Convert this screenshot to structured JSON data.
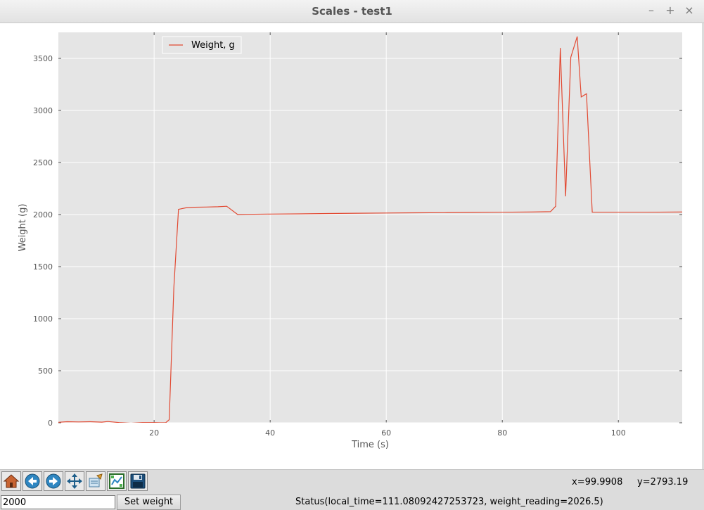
{
  "window": {
    "title": "Scales - test1",
    "controls": {
      "minimize": "–",
      "maximize": "+",
      "close": "×"
    }
  },
  "chart_data": {
    "type": "line",
    "xlabel": "Time (s)",
    "ylabel": "Weight (g)",
    "xlim": [
      3.5,
      111
    ],
    "ylim": [
      0,
      3750
    ],
    "xticks": [
      20,
      40,
      60,
      80,
      100
    ],
    "yticks": [
      0,
      500,
      1000,
      1500,
      2000,
      2500,
      3000,
      3500
    ],
    "grid": true,
    "legend_position": "top-left",
    "background_color": "#e5e5e5",
    "series": [
      {
        "name": "Weight, g",
        "color": "#e24a33",
        "x": [
          3.5,
          5,
          7,
          9,
          11,
          12,
          14,
          16,
          18,
          20,
          21,
          22,
          22.6,
          23.4,
          24.2,
          25.5,
          27,
          29,
          31,
          32.5,
          34.4,
          36,
          40,
          45,
          50,
          55,
          60,
          65,
          70,
          75,
          80,
          85,
          88.3,
          89.2,
          90,
          90.9,
          91.8,
          92.9,
          93.6,
          94.5,
          95.5,
          100,
          105,
          111
        ],
        "y": [
          5,
          10,
          8,
          10,
          6,
          12,
          2,
          -4,
          2,
          2,
          0,
          0,
          30,
          1300,
          2050,
          2065,
          2070,
          2072,
          2075,
          2080,
          2000,
          2002,
          2005,
          2007,
          2010,
          2013,
          2015,
          2017,
          2018,
          2020,
          2022,
          2024,
          2028,
          2080,
          3600,
          2175,
          3510,
          3710,
          3130,
          3160,
          2022,
          2022,
          2022,
          2024
        ]
      }
    ]
  },
  "toolbar": {
    "buttons": [
      {
        "name": "home-button",
        "icon": "home-icon"
      },
      {
        "name": "back-button",
        "icon": "arrow-left-icon"
      },
      {
        "name": "forward-button",
        "icon": "arrow-right-icon"
      },
      {
        "name": "pan-button",
        "icon": "move-arrows-icon"
      },
      {
        "name": "zoom-button",
        "icon": "zoom-rect-icon"
      },
      {
        "name": "subplots-button",
        "icon": "subplots-icon"
      },
      {
        "name": "save-button",
        "icon": "floppy-disk-icon"
      }
    ],
    "x_readout": "x=99.9908",
    "y_readout": "y=2793.19"
  },
  "controls": {
    "weight_value": "2000",
    "set_weight_label": "Set weight"
  },
  "status": {
    "text": "Status(local_time=111.08092427253723, weight_reading=2026.5)"
  }
}
